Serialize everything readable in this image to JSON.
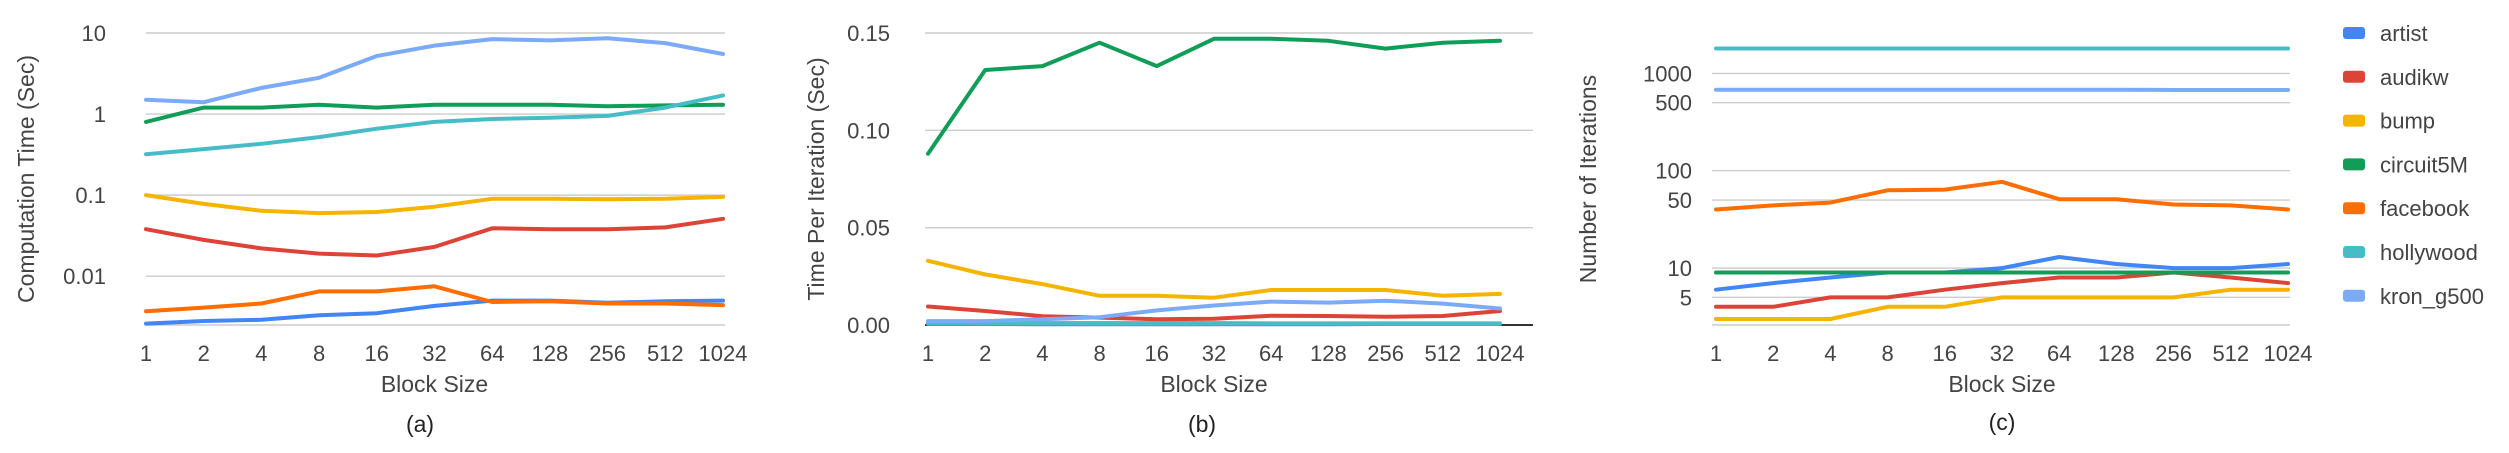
{
  "chart_data": [
    {
      "type": "line",
      "caption": "(a)",
      "xlabel": "Block Size",
      "ylabel": "Computation Time (Sec)",
      "yscale": "log",
      "ylim": [
        0.0025,
        10
      ],
      "yticks": [
        0.01,
        0.1,
        1,
        10
      ],
      "ytick_labels": [
        "0.01",
        "0.1",
        "1",
        "10"
      ],
      "grid": true,
      "categories": [
        "1",
        "2",
        "4",
        "8",
        "16",
        "32",
        "64",
        "128",
        "256",
        "512",
        "1024"
      ],
      "series": [
        {
          "name": "artist",
          "values": [
            0.0026,
            0.0028,
            0.0029,
            0.0033,
            0.0035,
            0.0043,
            0.005,
            0.005,
            0.0047,
            0.0049,
            0.005
          ]
        },
        {
          "name": "audikw",
          "values": [
            0.038,
            0.028,
            0.022,
            0.019,
            0.018,
            0.023,
            0.039,
            0.038,
            0.038,
            0.04,
            0.051
          ]
        },
        {
          "name": "bump",
          "values": [
            0.1,
            0.078,
            0.064,
            0.06,
            0.062,
            0.072,
            0.09,
            0.09,
            0.089,
            0.09,
            0.095
          ]
        },
        {
          "name": "circuit5M",
          "values": [
            0.8,
            1.2,
            1.2,
            1.3,
            1.2,
            1.3,
            1.3,
            1.3,
            1.25,
            1.28,
            1.3
          ]
        },
        {
          "name": "facebook",
          "values": [
            0.0037,
            0.0041,
            0.0046,
            0.0065,
            0.0065,
            0.0075,
            0.0048,
            0.0049,
            0.0046,
            0.0046,
            0.0044
          ]
        },
        {
          "name": "hollywood",
          "values": [
            0.32,
            0.37,
            0.43,
            0.52,
            0.66,
            0.8,
            0.87,
            0.9,
            0.95,
            1.2,
            1.7
          ]
        },
        {
          "name": "kron_g500",
          "values": [
            1.5,
            1.4,
            2.1,
            2.8,
            5.2,
            7.0,
            8.4,
            8.1,
            8.6,
            7.5,
            5.5
          ]
        }
      ]
    },
    {
      "type": "line",
      "caption": "(b)",
      "xlabel": "Block Size",
      "ylabel": "Time Per Iteration (Sec)",
      "yscale": "linear",
      "ylim": [
        0,
        0.15
      ],
      "yticks": [
        0,
        0.05,
        0.1,
        0.15
      ],
      "ytick_labels": [
        "0.00",
        "0.05",
        "0.10",
        "0.15"
      ],
      "grid": true,
      "categories": [
        "1",
        "2",
        "4",
        "8",
        "16",
        "32",
        "64",
        "128",
        "256",
        "512",
        "1024"
      ],
      "series": [
        {
          "name": "artist",
          "values": [
            0.0005,
            0.0005,
            0.0004,
            0.0004,
            0.0004,
            0.0004,
            0.0004,
            0.0004,
            0.0005,
            0.0005,
            0.0005
          ]
        },
        {
          "name": "audikw",
          "values": [
            0.0095,
            0.0072,
            0.0045,
            0.0038,
            0.003,
            0.0032,
            0.0048,
            0.0046,
            0.0042,
            0.0046,
            0.0072
          ]
        },
        {
          "name": "bump",
          "values": [
            0.033,
            0.026,
            0.021,
            0.015,
            0.015,
            0.014,
            0.018,
            0.018,
            0.018,
            0.015,
            0.016
          ]
        },
        {
          "name": "circuit5M",
          "values": [
            0.088,
            0.131,
            0.133,
            0.145,
            0.133,
            0.147,
            0.147,
            0.146,
            0.142,
            0.145,
            0.146
          ]
        },
        {
          "name": "facebook",
          "values": [
            0.001,
            0.001,
            0.001,
            0.001,
            0.001,
            0.001,
            0.0008,
            0.0008,
            0.0008,
            0.0008,
            0.0008
          ]
        },
        {
          "name": "hollywood",
          "values": [
            0.001,
            0.0008,
            0.0008,
            0.0007,
            0.0007,
            0.0007,
            0.0007,
            0.0007,
            0.0007,
            0.0007,
            0.0007
          ]
        },
        {
          "name": "kron_g500",
          "values": [
            0.002,
            0.002,
            0.003,
            0.004,
            0.0075,
            0.01,
            0.012,
            0.0115,
            0.0125,
            0.011,
            0.0085
          ]
        }
      ]
    },
    {
      "type": "line",
      "caption": "(c)",
      "xlabel": "Block Size",
      "ylabel": "Number of Iterations",
      "yscale": "log",
      "ylim": [
        2.6,
        2600
      ],
      "yticks": [
        5,
        10,
        50,
        100,
        500,
        1000
      ],
      "ytick_labels": [
        "5",
        "10",
        "50",
        "100",
        "500",
        "1000"
      ],
      "grid": true,
      "categories": [
        "1",
        "2",
        "4",
        "8",
        "16",
        "32",
        "64",
        "128",
        "256",
        "512",
        "1024"
      ],
      "series": [
        {
          "name": "artist",
          "values": [
            6,
            7,
            8,
            9,
            9,
            10,
            13,
            11,
            10,
            10,
            11
          ]
        },
        {
          "name": "audikw",
          "values": [
            4,
            4,
            5,
            5,
            6,
            7,
            8,
            8,
            9,
            8,
            7
          ]
        },
        {
          "name": "bump",
          "values": [
            3,
            3,
            3,
            4,
            4,
            5,
            5,
            5,
            5,
            6,
            6
          ]
        },
        {
          "name": "circuit5M",
          "values": [
            9,
            9,
            9,
            9,
            9,
            9,
            9,
            9,
            9,
            9,
            9
          ]
        },
        {
          "name": "facebook",
          "values": [
            40,
            44,
            47,
            63,
            64,
            77,
            51,
            51,
            45,
            44,
            40
          ]
        },
        {
          "name": "hollywood",
          "values": [
            1800,
            1800,
            1800,
            1800,
            1800,
            1800,
            1800,
            1800,
            1800,
            1800,
            1800
          ]
        },
        {
          "name": "kron_g500",
          "values": [
            680,
            680,
            680,
            680,
            680,
            680,
            680,
            680,
            675,
            675,
            675
          ]
        }
      ]
    }
  ],
  "legend": {
    "placement": "right",
    "items": [
      {
        "name": "artist",
        "color": "#4285F4"
      },
      {
        "name": "audikw",
        "color": "#DB4437"
      },
      {
        "name": "bump",
        "color": "#F4B400"
      },
      {
        "name": "circuit5M",
        "color": "#0F9D58"
      },
      {
        "name": "facebook",
        "color": "#FF6D00"
      },
      {
        "name": "hollywood",
        "color": "#46BDC6"
      },
      {
        "name": "kron_g500",
        "color": "#7BAAF7"
      }
    ]
  }
}
